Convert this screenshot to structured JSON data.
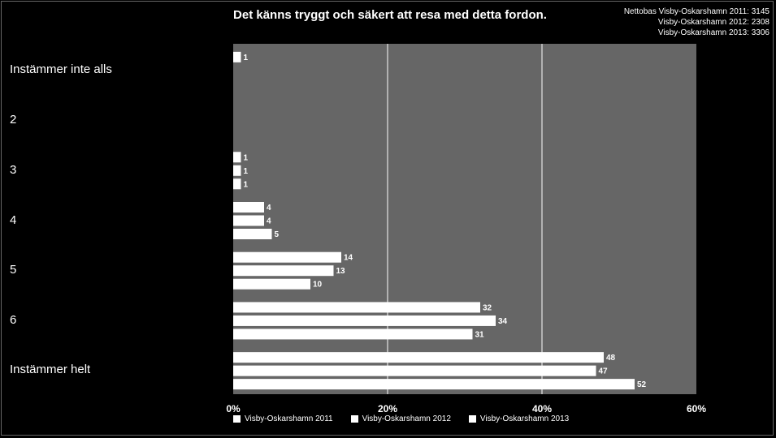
{
  "chart_data": {
    "type": "bar",
    "orientation": "horizontal",
    "title": "Det känns tryggt och säkert att resa med detta fordon.",
    "base_lines": [
      "Nettobas  Visby-Oskarshamn 2011: 3145",
      "Visby-Oskarshamn 2012: 2308",
      "Visby-Oskarshamn 2013: 3306"
    ],
    "categories": [
      "Instämmer inte alls",
      "2",
      "3",
      "4",
      "5",
      "6",
      "Instämmer helt"
    ],
    "series": [
      {
        "name": "Visby-Oskarshamn 2011",
        "values": [
          1,
          null,
          1,
          4,
          14,
          32,
          48
        ]
      },
      {
        "name": "Visby-Oskarshamn 2012",
        "values": [
          null,
          null,
          1,
          4,
          13,
          34,
          47
        ]
      },
      {
        "name": "Visby-Oskarshamn 2013",
        "values": [
          null,
          null,
          1,
          5,
          10,
          31,
          52
        ]
      }
    ],
    "xlim": [
      0,
      60
    ],
    "xticks": [
      "0%",
      "20%",
      "40%",
      "60%"
    ],
    "grid": true,
    "legend": "bottom",
    "colors": {
      "background": "#000000",
      "plot_area": "#666666",
      "bar": "#ffffff",
      "grid": "#ffffff"
    }
  }
}
